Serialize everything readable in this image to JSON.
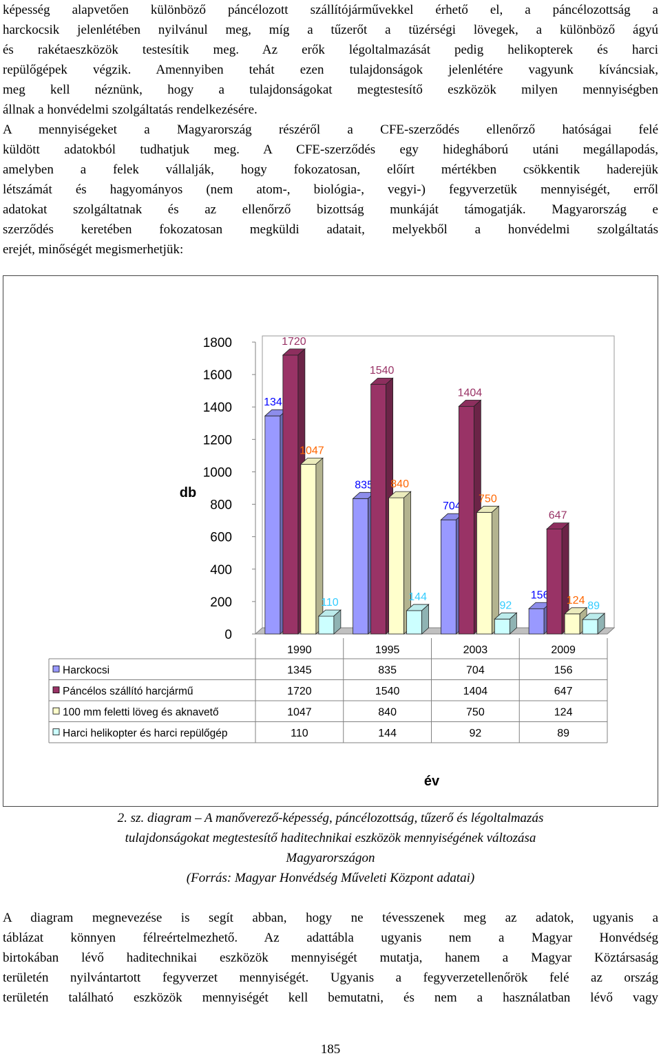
{
  "paragraph_top": {
    "lines": [
      "képesség alapvetően különböző páncélozott szállítójárművekkel érhető el, a páncélozottság a",
      "harckocsik jelenlétében nyilvánul meg, míg a tűzerőt a tüzérségi lövegek, a különböző ágyú",
      "és rakétaeszközök testesítik meg. Az erők légoltalmazását pedig helikopterek és harci",
      "repülőgépek végzik. Amennyiben tehát ezen tulajdonságok jelenlétére vagyunk kíváncsiak,",
      "meg kell néznünk, hogy a tulajdonságokat megtestesítő eszközök milyen mennyiségben",
      "állnak a honvédelmi szolgáltatás rendelkezésére.",
      "A mennyiségeket a Magyarország részéről a CFE-szerződés ellenőrző hatóságai felé",
      "küldött adatokból tudhatjuk meg. A CFE-szerződés egy hidegháború utáni megállapodás,",
      "amelyben a felek vállalják, hogy fokozatosan, előírt mértékben csökkentik haderejük",
      "létszámát és hagyományos (nem atom-, biológia-, vegyi-) fegyverzetük mennyiségét, erről",
      "adatokat szolgáltatnak és az ellenőrző bizottság munkáját támogatják. Magyarország e",
      "szerződés keretében fokozatosan megküldi adatait, melyekből a honvédelmi szolgáltatás",
      "erejét, minőségét megismerhetjük:"
    ]
  },
  "chart_data": {
    "type": "bar",
    "categories": [
      "1990",
      "1995",
      "2003",
      "2009"
    ],
    "series": [
      {
        "name": "Harckocsi",
        "values": [
          1345,
          835,
          704,
          156
        ],
        "color": "#9999ff",
        "label_color": "#0000ff"
      },
      {
        "name": "Páncélos szállító harcjármű",
        "values": [
          1720,
          1540,
          1404,
          647
        ],
        "color": "#993366",
        "label_color": "#993366"
      },
      {
        "name": "100 mm feletti löveg és aknavető",
        "values": [
          1047,
          840,
          750,
          124
        ],
        "color": "#ffffcc",
        "label_color": "#ff6600"
      },
      {
        "name": "Harci helikopter és harci repülőgép",
        "values": [
          110,
          144,
          92,
          89
        ],
        "color": "#ccffff",
        "label_color": "#33ccff"
      }
    ],
    "ylabel": "db",
    "xlabel": "év",
    "ylim": [
      0,
      1800
    ],
    "yticks": [
      "0",
      "200",
      "400",
      "600",
      "800",
      "1000",
      "1200",
      "1400",
      "1600",
      "1800"
    ],
    "grid": false,
    "legend": "data-table"
  },
  "caption": {
    "lines": [
      "2. sz. diagram – A manőverező-képesség, páncélozottság, tűzerő és légoltalmazás",
      "tulajdonságokat megtestesítő haditechnikai eszközök mennyiségének változása",
      "Magyarországon",
      "(Forrás: Magyar Honvédség Műveleti Központ adatai)"
    ]
  },
  "paragraph_bottom": {
    "lines": [
      "A diagram megnevezése is segít abban, hogy ne tévesszenek meg az adatok, ugyanis a",
      "táblázat könnyen félreértelmezhető. Az adattábla ugyanis nem a Magyar Honvédség",
      "birtokában lévő haditechnikai eszközök mennyiségét mutatja, hanem a Magyar Köztársaság",
      "területén nyilvántartott fegyverzet mennyiségét. Ugyanis a fegyverzetellenőrök felé az ország",
      "területén található eszközök mennyiségét kell bemutatni, és nem a használatban lévő vagy"
    ]
  },
  "page_number": "185"
}
